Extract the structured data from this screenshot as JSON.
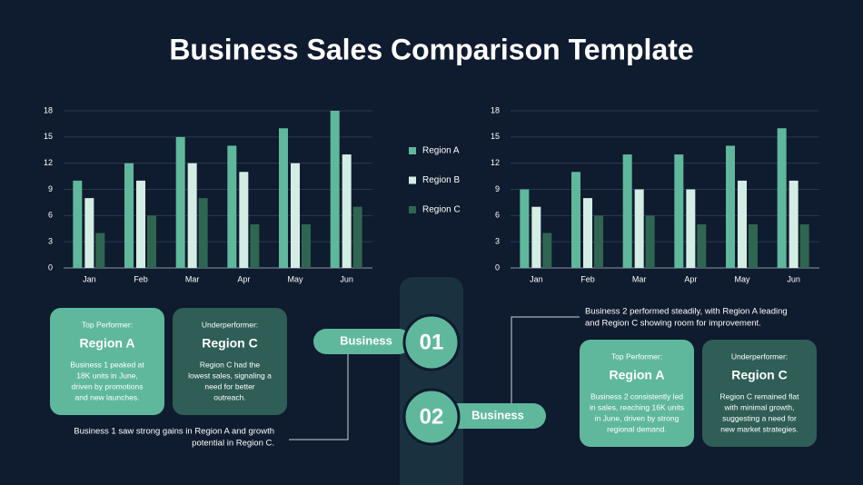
{
  "title": "Business Sales Comparison Template",
  "chart_data": [
    {
      "type": "bar",
      "categories": [
        "Jan",
        "Feb",
        "Mar",
        "Apr",
        "May",
        "Jun"
      ],
      "series": [
        {
          "name": "Region A",
          "color": "#5fb89c",
          "values": [
            10,
            12,
            15,
            14,
            16,
            18
          ]
        },
        {
          "name": "Region B",
          "color": "#d4ede4",
          "values": [
            8,
            10,
            12,
            11,
            12,
            13
          ]
        },
        {
          "name": "Region C",
          "color": "#2f6651",
          "values": [
            4,
            6,
            8,
            5,
            5,
            7
          ]
        }
      ],
      "ylim": [
        0,
        18
      ],
      "yticks": [
        0,
        3,
        6,
        9,
        12,
        15,
        18
      ],
      "grid": true,
      "legend": "right"
    },
    {
      "type": "bar",
      "categories": [
        "Jan",
        "Feb",
        "Mar",
        "Apr",
        "May",
        "Jun"
      ],
      "series": [
        {
          "color": "#5fb89c",
          "values": [
            9,
            11,
            13,
            13,
            14,
            16
          ]
        },
        {
          "color": "#d4ede4",
          "values": [
            7,
            8,
            9,
            9,
            10,
            10
          ]
        },
        {
          "color": "#2f6651",
          "values": [
            4,
            6,
            6,
            5,
            5,
            5
          ]
        }
      ],
      "ylim": [
        0,
        18
      ],
      "yticks": [
        0,
        3,
        6,
        9,
        12,
        15,
        18
      ],
      "grid": true
    }
  ],
  "business_1": {
    "label": "Business",
    "number": "01",
    "note": [
      "Business 1 saw strong gains in Region A and growth",
      "potential in Region C."
    ],
    "cards": [
      {
        "heading": "Top Performer:",
        "title": "Region A",
        "body": [
          "Business 1 peaked at",
          "18K units in June,",
          "driven by promotions",
          "and new launches."
        ]
      },
      {
        "heading": "Underperformer:",
        "title": "Region C",
        "body": [
          "Region C had the",
          "lowest sales, signaling a",
          "need for better",
          "outreach."
        ]
      }
    ]
  },
  "business_2": {
    "label": "Business",
    "number": "02",
    "note": [
      "Business 2 performed steadily, with Region A leading",
      "and Region C showing room for improvement."
    ],
    "cards": [
      {
        "heading": "Top Performer:",
        "title": "Region A",
        "body": [
          "Business 2 consistently led",
          "in sales, reaching 16K units",
          "in June, driven by strong",
          "regional demand."
        ]
      },
      {
        "heading": "Underperformer:",
        "title": "Region C",
        "body": [
          "Region C remained flat",
          "with minimal growth,",
          "suggesting a need for",
          "new market strategies."
        ]
      }
    ]
  }
}
